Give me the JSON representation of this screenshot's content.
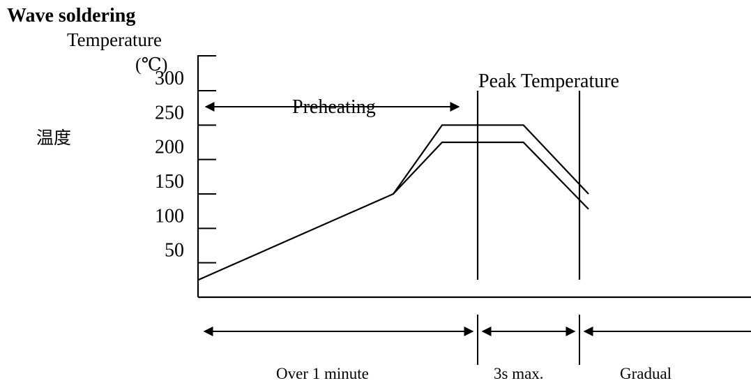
{
  "chart_data": {
    "type": "line",
    "title": "Wave soldering",
    "ylabel": "Temperature",
    "yunit": "(℃)",
    "ylabel_cn": "温度",
    "ylim": [
      0,
      300
    ],
    "yticks": [
      {
        "label": "50",
        "value": 50
      },
      {
        "label": "100",
        "value": 100
      },
      {
        "label": "150",
        "value": 150
      },
      {
        "label": "200",
        "value": 200
      },
      {
        "label": "250",
        "value": 250
      },
      {
        "label": "300",
        "value": 300
      }
    ],
    "series": [
      {
        "points": [
          {
            "x": 0,
            "y": 25
          },
          {
            "x": 60,
            "y": 150
          },
          {
            "x": 75,
            "y": 250
          },
          {
            "x": 100,
            "y": 250
          },
          {
            "x": 120,
            "y": 150
          }
        ]
      },
      {
        "points": [
          {
            "x": 60,
            "y": 150
          },
          {
            "x": 75,
            "y": 225
          },
          {
            "x": 100,
            "y": 225
          },
          {
            "x": 120,
            "y": 128
          }
        ]
      }
    ],
    "annotations": {
      "preheating": "Preheating",
      "peak": "Peak Temperature"
    },
    "time_labels": {
      "preheat": "Over 1 minute",
      "peak": "3s max.",
      "cooling": "Gradual"
    }
  }
}
